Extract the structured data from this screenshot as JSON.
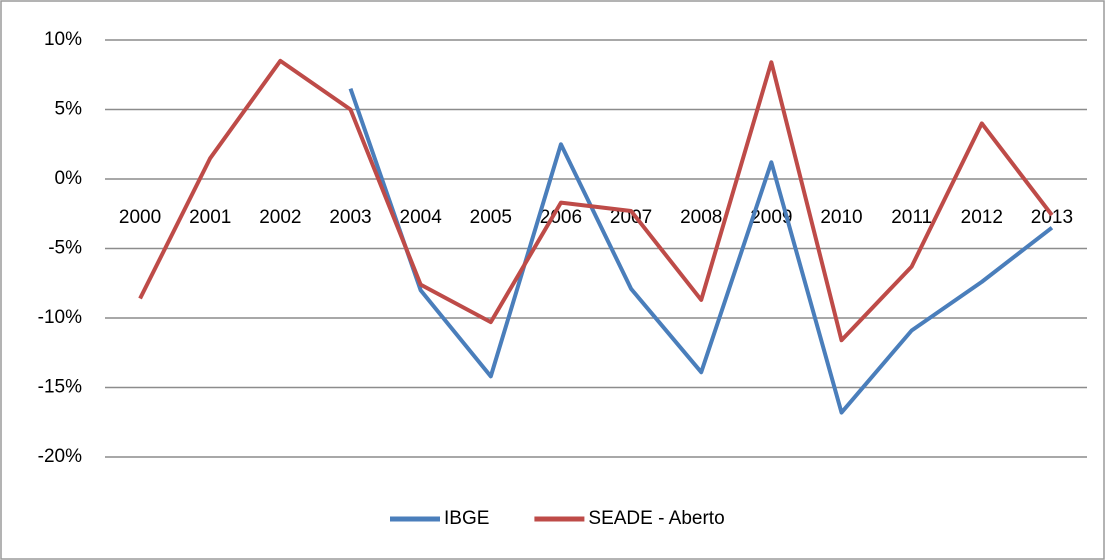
{
  "chart_data": {
    "type": "line",
    "categories": [
      "2000",
      "2001",
      "2002",
      "2003",
      "2004",
      "2005",
      "2006",
      "2007",
      "2008",
      "2009",
      "2010",
      "2011",
      "2012",
      "2013"
    ],
    "series": [
      {
        "name": "IBGE",
        "color": "#4a7ebb",
        "values": [
          null,
          null,
          null,
          6.5,
          -8.0,
          -14.2,
          2.5,
          -7.9,
          -13.9,
          1.2,
          -16.8,
          -10.9,
          -7.4,
          -3.5
        ]
      },
      {
        "name": "SEADE - Aberto",
        "color": "#be4b48",
        "values": [
          -8.6,
          1.5,
          8.5,
          5.0,
          -7.6,
          -10.3,
          -1.7,
          -2.3,
          -8.7,
          8.4,
          -11.6,
          -6.3,
          4.0,
          -2.6
        ]
      }
    ],
    "ylim": [
      -20,
      10
    ],
    "yticks": [
      {
        "value": -20,
        "label": "-20%"
      },
      {
        "value": -15,
        "label": "-15%"
      },
      {
        "value": -10,
        "label": "-10%"
      },
      {
        "value": -5,
        "label": "-5%"
      },
      {
        "value": 0,
        "label": "0%"
      },
      {
        "value": 5,
        "label": "5%"
      },
      {
        "value": 10,
        "label": "10%"
      }
    ],
    "grid": true,
    "legend": "bottom"
  }
}
